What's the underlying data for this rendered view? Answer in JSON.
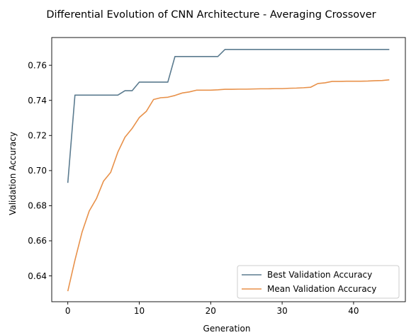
{
  "chart_data": {
    "type": "line",
    "title": "Differential Evolution of CNN Architecture - Averaging Crossover",
    "xlabel": "Generation",
    "ylabel": "Validation Accuracy",
    "xlim": [
      -2.25,
      47.25
    ],
    "ylim": [
      0.6253,
      0.7758
    ],
    "xticks": [
      0,
      10,
      20,
      30,
      40
    ],
    "yticks": [
      0.64,
      0.66,
      0.68,
      0.7,
      0.72,
      0.74,
      0.76
    ],
    "ytick_labels": [
      "0.64",
      "0.66",
      "0.68",
      "0.70",
      "0.72",
      "0.74",
      "0.76"
    ],
    "grid": false,
    "legend_position": "lower-right",
    "x": [
      0,
      1,
      2,
      3,
      4,
      5,
      6,
      7,
      8,
      9,
      10,
      11,
      12,
      13,
      14,
      15,
      16,
      17,
      18,
      19,
      20,
      21,
      22,
      23,
      24,
      25,
      26,
      27,
      28,
      29,
      30,
      31,
      32,
      33,
      34,
      35,
      36,
      37,
      38,
      39,
      40,
      41,
      42,
      43,
      44,
      45
    ],
    "series": [
      {
        "name": "Best Validation Accuracy",
        "color": "#5b7b8f",
        "values": [
          0.693,
          0.743,
          0.743,
          0.743,
          0.743,
          0.743,
          0.743,
          0.743,
          0.7455,
          0.7455,
          0.7504,
          0.7504,
          0.7504,
          0.7504,
          0.7504,
          0.765,
          0.765,
          0.765,
          0.765,
          0.765,
          0.765,
          0.765,
          0.769,
          0.769,
          0.769,
          0.769,
          0.769,
          0.769,
          0.769,
          0.769,
          0.769,
          0.769,
          0.769,
          0.769,
          0.769,
          0.769,
          0.769,
          0.769,
          0.769,
          0.769,
          0.769,
          0.769,
          0.769,
          0.769,
          0.769,
          0.769
        ]
      },
      {
        "name": "Mean Validation Accuracy",
        "color": "#e8914a",
        "values": [
          0.6313,
          0.649,
          0.665,
          0.677,
          0.684,
          0.694,
          0.699,
          0.7105,
          0.719,
          0.724,
          0.7302,
          0.7338,
          0.7405,
          0.7415,
          0.7418,
          0.7428,
          0.7442,
          0.7448,
          0.7458,
          0.7458,
          0.7458,
          0.746,
          0.7463,
          0.7463,
          0.7464,
          0.7464,
          0.7465,
          0.7466,
          0.7466,
          0.7467,
          0.7467,
          0.7469,
          0.747,
          0.7472,
          0.7475,
          0.7496,
          0.75,
          0.7508,
          0.7508,
          0.7509,
          0.7509,
          0.7509,
          0.751,
          0.7512,
          0.7513,
          0.7517
        ]
      }
    ]
  }
}
